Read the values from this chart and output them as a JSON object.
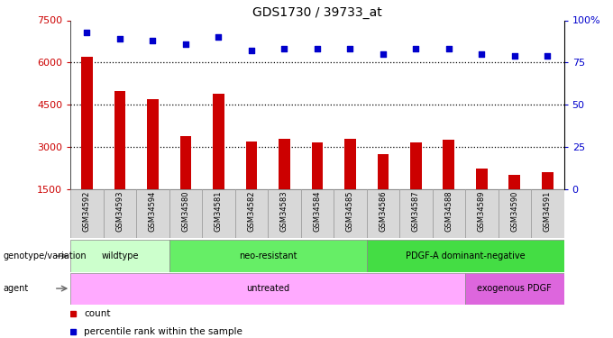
{
  "title": "GDS1730 / 39733_at",
  "samples": [
    "GSM34592",
    "GSM34593",
    "GSM34594",
    "GSM34580",
    "GSM34581",
    "GSM34582",
    "GSM34583",
    "GSM34584",
    "GSM34585",
    "GSM34586",
    "GSM34587",
    "GSM34588",
    "GSM34589",
    "GSM34590",
    "GSM34591"
  ],
  "counts": [
    6200,
    5000,
    4700,
    3400,
    4900,
    3200,
    3300,
    3150,
    3300,
    2750,
    3150,
    3250,
    2250,
    2000,
    2100
  ],
  "percentile_ranks": [
    93,
    89,
    88,
    86,
    90,
    82,
    83,
    83,
    83,
    80,
    83,
    83,
    80,
    79,
    79
  ],
  "bar_color": "#cc0000",
  "scatter_color": "#0000cc",
  "ylim_left": [
    1500,
    7500
  ],
  "ylim_right": [
    0,
    100
  ],
  "yticks_left": [
    1500,
    3000,
    4500,
    6000,
    7500
  ],
  "yticks_right": [
    0,
    25,
    50,
    75,
    100
  ],
  "grid_values": [
    3000,
    4500,
    6000
  ],
  "genotype_groups": [
    {
      "label": "wildtype",
      "start": 0,
      "end": 3,
      "color": "#ccffcc"
    },
    {
      "label": "neo-resistant",
      "start": 3,
      "end": 9,
      "color": "#66ee66"
    },
    {
      "label": "PDGF-A dominant-negative",
      "start": 9,
      "end": 15,
      "color": "#44dd44"
    }
  ],
  "agent_groups": [
    {
      "label": "untreated",
      "start": 0,
      "end": 12,
      "color": "#ffaaff"
    },
    {
      "label": "exogenous PDGF",
      "start": 12,
      "end": 15,
      "color": "#dd66dd"
    }
  ],
  "legend_items": [
    {
      "label": "count",
      "color": "#cc0000"
    },
    {
      "label": "percentile rank within the sample",
      "color": "#0000cc"
    }
  ],
  "left_tick_color": "#cc0000",
  "right_tick_color": "#0000cc",
  "xlabels_bg": "#d8d8d8"
}
